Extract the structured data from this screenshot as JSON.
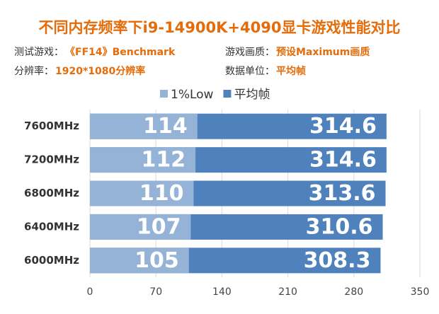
{
  "chart_data": {
    "type": "bar",
    "orientation": "horizontal",
    "overlap": true,
    "title": "不同内存频率下i9-14900K+4090显卡游戏性能对比",
    "info": [
      {
        "label": "测试游戏：",
        "value": "《FF14》Benchmark"
      },
      {
        "label": "游戏画质：",
        "value": "预设Maximum画质"
      },
      {
        "label": "分辨率：",
        "value": "1920*1080分辨率"
      },
      {
        "label": "数据单位：",
        "value": "平均帧"
      }
    ],
    "categories": [
      "7600MHz",
      "7200MHz",
      "6800MHz",
      "6400MHz",
      "6000MHz"
    ],
    "series": [
      {
        "name": "平均帧",
        "color": "#4f81bd",
        "values": [
          314.6,
          314.6,
          313.6,
          310.6,
          308.3
        ]
      },
      {
        "name": "1%Low",
        "color": "#95b3d7",
        "values": [
          114,
          112,
          110,
          107,
          105
        ]
      }
    ],
    "legend_order": [
      1,
      0
    ],
    "xlim": [
      0,
      350
    ],
    "xticks": [
      0,
      70,
      140,
      210,
      280,
      350
    ],
    "grid": true
  }
}
